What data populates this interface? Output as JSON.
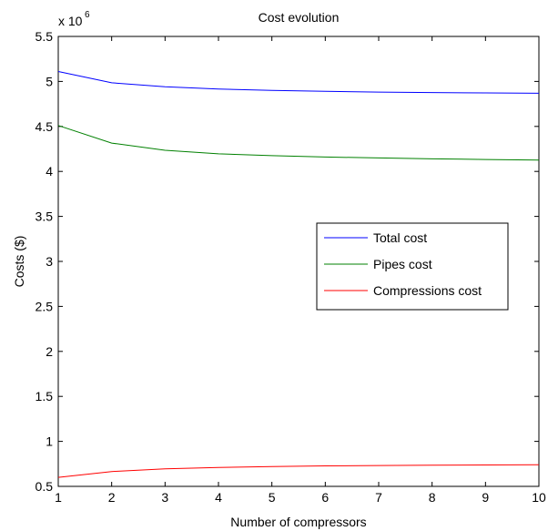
{
  "chart_data": {
    "type": "line",
    "title": "Cost evolution",
    "xlabel": "Number of compressors",
    "ylabel": "Costs ($)",
    "y_exponent_label": "x 10",
    "y_exponent_power": "6",
    "xlim": [
      1,
      10
    ],
    "ylim": [
      0.5,
      5.5
    ],
    "x_ticks": [
      "1",
      "2",
      "3",
      "4",
      "5",
      "6",
      "7",
      "8",
      "9",
      "10"
    ],
    "y_ticks": [
      "0.5",
      "1",
      "1.5",
      "2",
      "2.5",
      "3",
      "3.5",
      "4",
      "4.5",
      "5",
      "5.5"
    ],
    "grid": false,
    "legend_position": "right",
    "x": [
      1,
      2,
      3,
      4,
      5,
      6,
      7,
      8,
      9,
      10
    ],
    "series": [
      {
        "name": "Total cost",
        "color": "#0000ff",
        "values": [
          5.11,
          4.985,
          4.94,
          4.915,
          4.9,
          4.89,
          4.882,
          4.877,
          4.872,
          4.868
        ]
      },
      {
        "name": "Pipes cost",
        "color": "#008000",
        "values": [
          4.51,
          4.315,
          4.235,
          4.195,
          4.175,
          4.16,
          4.15,
          4.14,
          4.133,
          4.127
        ]
      },
      {
        "name": "Compressions cost",
        "color": "#ff0000",
        "values": [
          0.6,
          0.665,
          0.695,
          0.71,
          0.72,
          0.728,
          0.732,
          0.735,
          0.738,
          0.74
        ]
      }
    ]
  }
}
